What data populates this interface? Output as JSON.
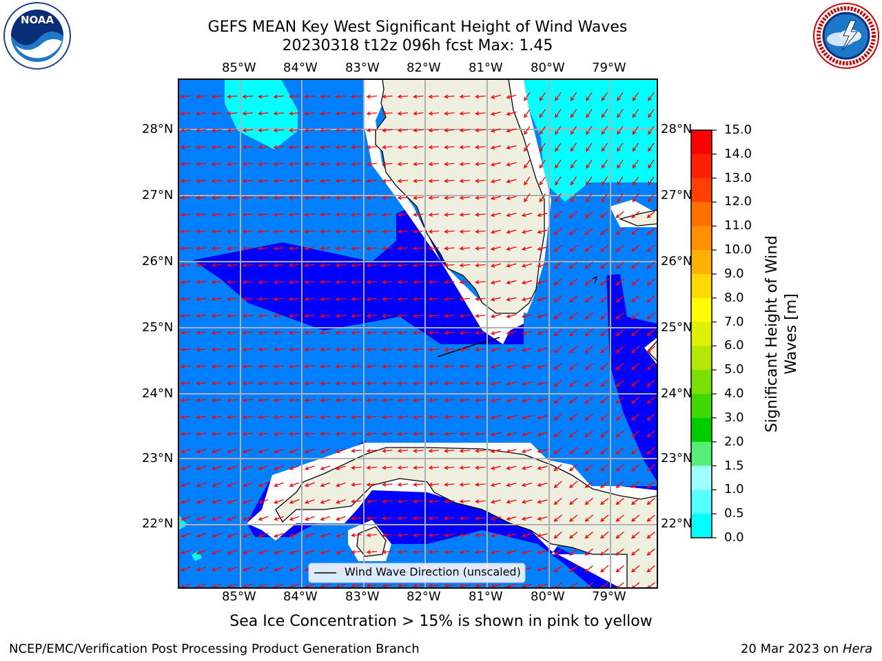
{
  "header": {
    "title_line1": "GEFS MEAN Key West Significant Height of Wind Waves",
    "title_line2": "20230318 t12z 096h fcst   Max: 1.45"
  },
  "logos": {
    "noaa_text": "NOAA",
    "noaa_ring_text": "NATIONAL OCEANIC AND ATMOSPHERIC ADMINISTRATION · U.S. DEPARTMENT OF COMMERCE",
    "nws_ring_text": "NATIONAL WEATHER SERVICE"
  },
  "map": {
    "lon_labels": [
      "85°W",
      "84°W",
      "83°W",
      "82°W",
      "81°W",
      "80°W",
      "79°W"
    ],
    "lat_labels": [
      "28°N",
      "27°N",
      "26°N",
      "25°N",
      "24°N",
      "23°N",
      "22°N"
    ],
    "legend_label": "Wind Wave Direction (unscaled)",
    "max_value": 1.45,
    "arrow_color": "#ff0000",
    "land_color": "#efefdf",
    "coast_color": "#000000",
    "grid_color": "#b0b0b0"
  },
  "colorbar": {
    "title": "Significant Height of Wind Waves [m]",
    "ticks": [
      "15.0",
      "14.0",
      "13.0",
      "12.0",
      "11.0",
      "10.0",
      "9.0",
      "8.0",
      "7.0",
      "6.0",
      "5.0",
      "4.0",
      "3.0",
      "2.0",
      "1.5",
      "1.0",
      "0.5",
      "0.0"
    ],
    "colors_top_to_bottom": [
      "#ff0000",
      "#ff2000",
      "#ff4000",
      "#ff7000",
      "#ff9000",
      "#ffb000",
      "#ffd800",
      "#ffff00",
      "#ddf000",
      "#b5e800",
      "#7ae000",
      "#40d800",
      "#00cc00",
      "#55ee77",
      "#a0ffff",
      "#55ffff",
      "#00ffff",
      "#0080ff",
      "#0000ff"
    ]
  },
  "footer": {
    "ice_note": "Sea Ice Concentration > 15% is shown in pink to yellow",
    "left": "NCEP/EMC/Verification Post Processing Product Generation Branch",
    "right_date": "20 Mar 2023 on ",
    "right_host": "Hera"
  }
}
